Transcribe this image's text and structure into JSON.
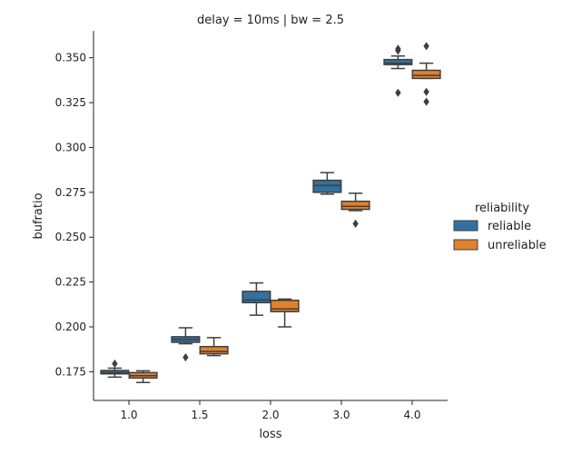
{
  "chart_data": {
    "type": "box",
    "title": "delay = 10ms | bw = 2.5",
    "xlabel": "loss",
    "ylabel": "bufratio",
    "categories": [
      "1.0",
      "1.5",
      "2.0",
      "3.0",
      "4.0"
    ],
    "ylim": [
      0.159,
      0.365
    ],
    "yticks": [
      "0.175",
      "0.200",
      "0.225",
      "0.250",
      "0.275",
      "0.300",
      "0.325",
      "0.350"
    ],
    "grid": false,
    "legend": {
      "title": "reliability",
      "position": "right"
    },
    "series": [
      {
        "name": "reliable",
        "color": "#33709f",
        "boxes": [
          {
            "whislo": 0.172,
            "q1": 0.1738,
            "med": 0.1745,
            "q3": 0.1757,
            "whishi": 0.177,
            "fliers": [
              0.1795
            ]
          },
          {
            "whislo": 0.1906,
            "q1": 0.1914,
            "med": 0.193,
            "q3": 0.1945,
            "whishi": 0.1995,
            "fliers": [
              0.183
            ]
          },
          {
            "whislo": 0.2065,
            "q1": 0.2135,
            "med": 0.215,
            "q3": 0.2198,
            "whishi": 0.2245,
            "fliers": []
          },
          {
            "whislo": 0.274,
            "q1": 0.275,
            "med": 0.2788,
            "q3": 0.2817,
            "whishi": 0.286,
            "fliers": []
          },
          {
            "whislo": 0.344,
            "q1": 0.3462,
            "med": 0.347,
            "q3": 0.349,
            "whishi": 0.351,
            "fliers": [
              0.3305,
              0.355,
              0.354
            ]
          }
        ]
      },
      {
        "name": "unreliable",
        "color": "#e1812c",
        "boxes": [
          {
            "whislo": 0.169,
            "q1": 0.1715,
            "med": 0.1728,
            "q3": 0.1745,
            "whishi": 0.1755,
            "fliers": []
          },
          {
            "whislo": 0.184,
            "q1": 0.185,
            "med": 0.1863,
            "q3": 0.189,
            "whishi": 0.194,
            "fliers": []
          },
          {
            "whislo": 0.2,
            "q1": 0.2085,
            "med": 0.21,
            "q3": 0.2148,
            "whishi": 0.2155,
            "fliers": []
          },
          {
            "whislo": 0.2648,
            "q1": 0.2655,
            "med": 0.2672,
            "q3": 0.27,
            "whishi": 0.2745,
            "fliers": [
              0.2575
            ]
          },
          {
            "whislo": 0.3385,
            "q1": 0.3385,
            "med": 0.3402,
            "q3": 0.343,
            "whishi": 0.347,
            "fliers": [
              0.3255,
              0.331,
              0.3565
            ]
          }
        ]
      }
    ]
  }
}
